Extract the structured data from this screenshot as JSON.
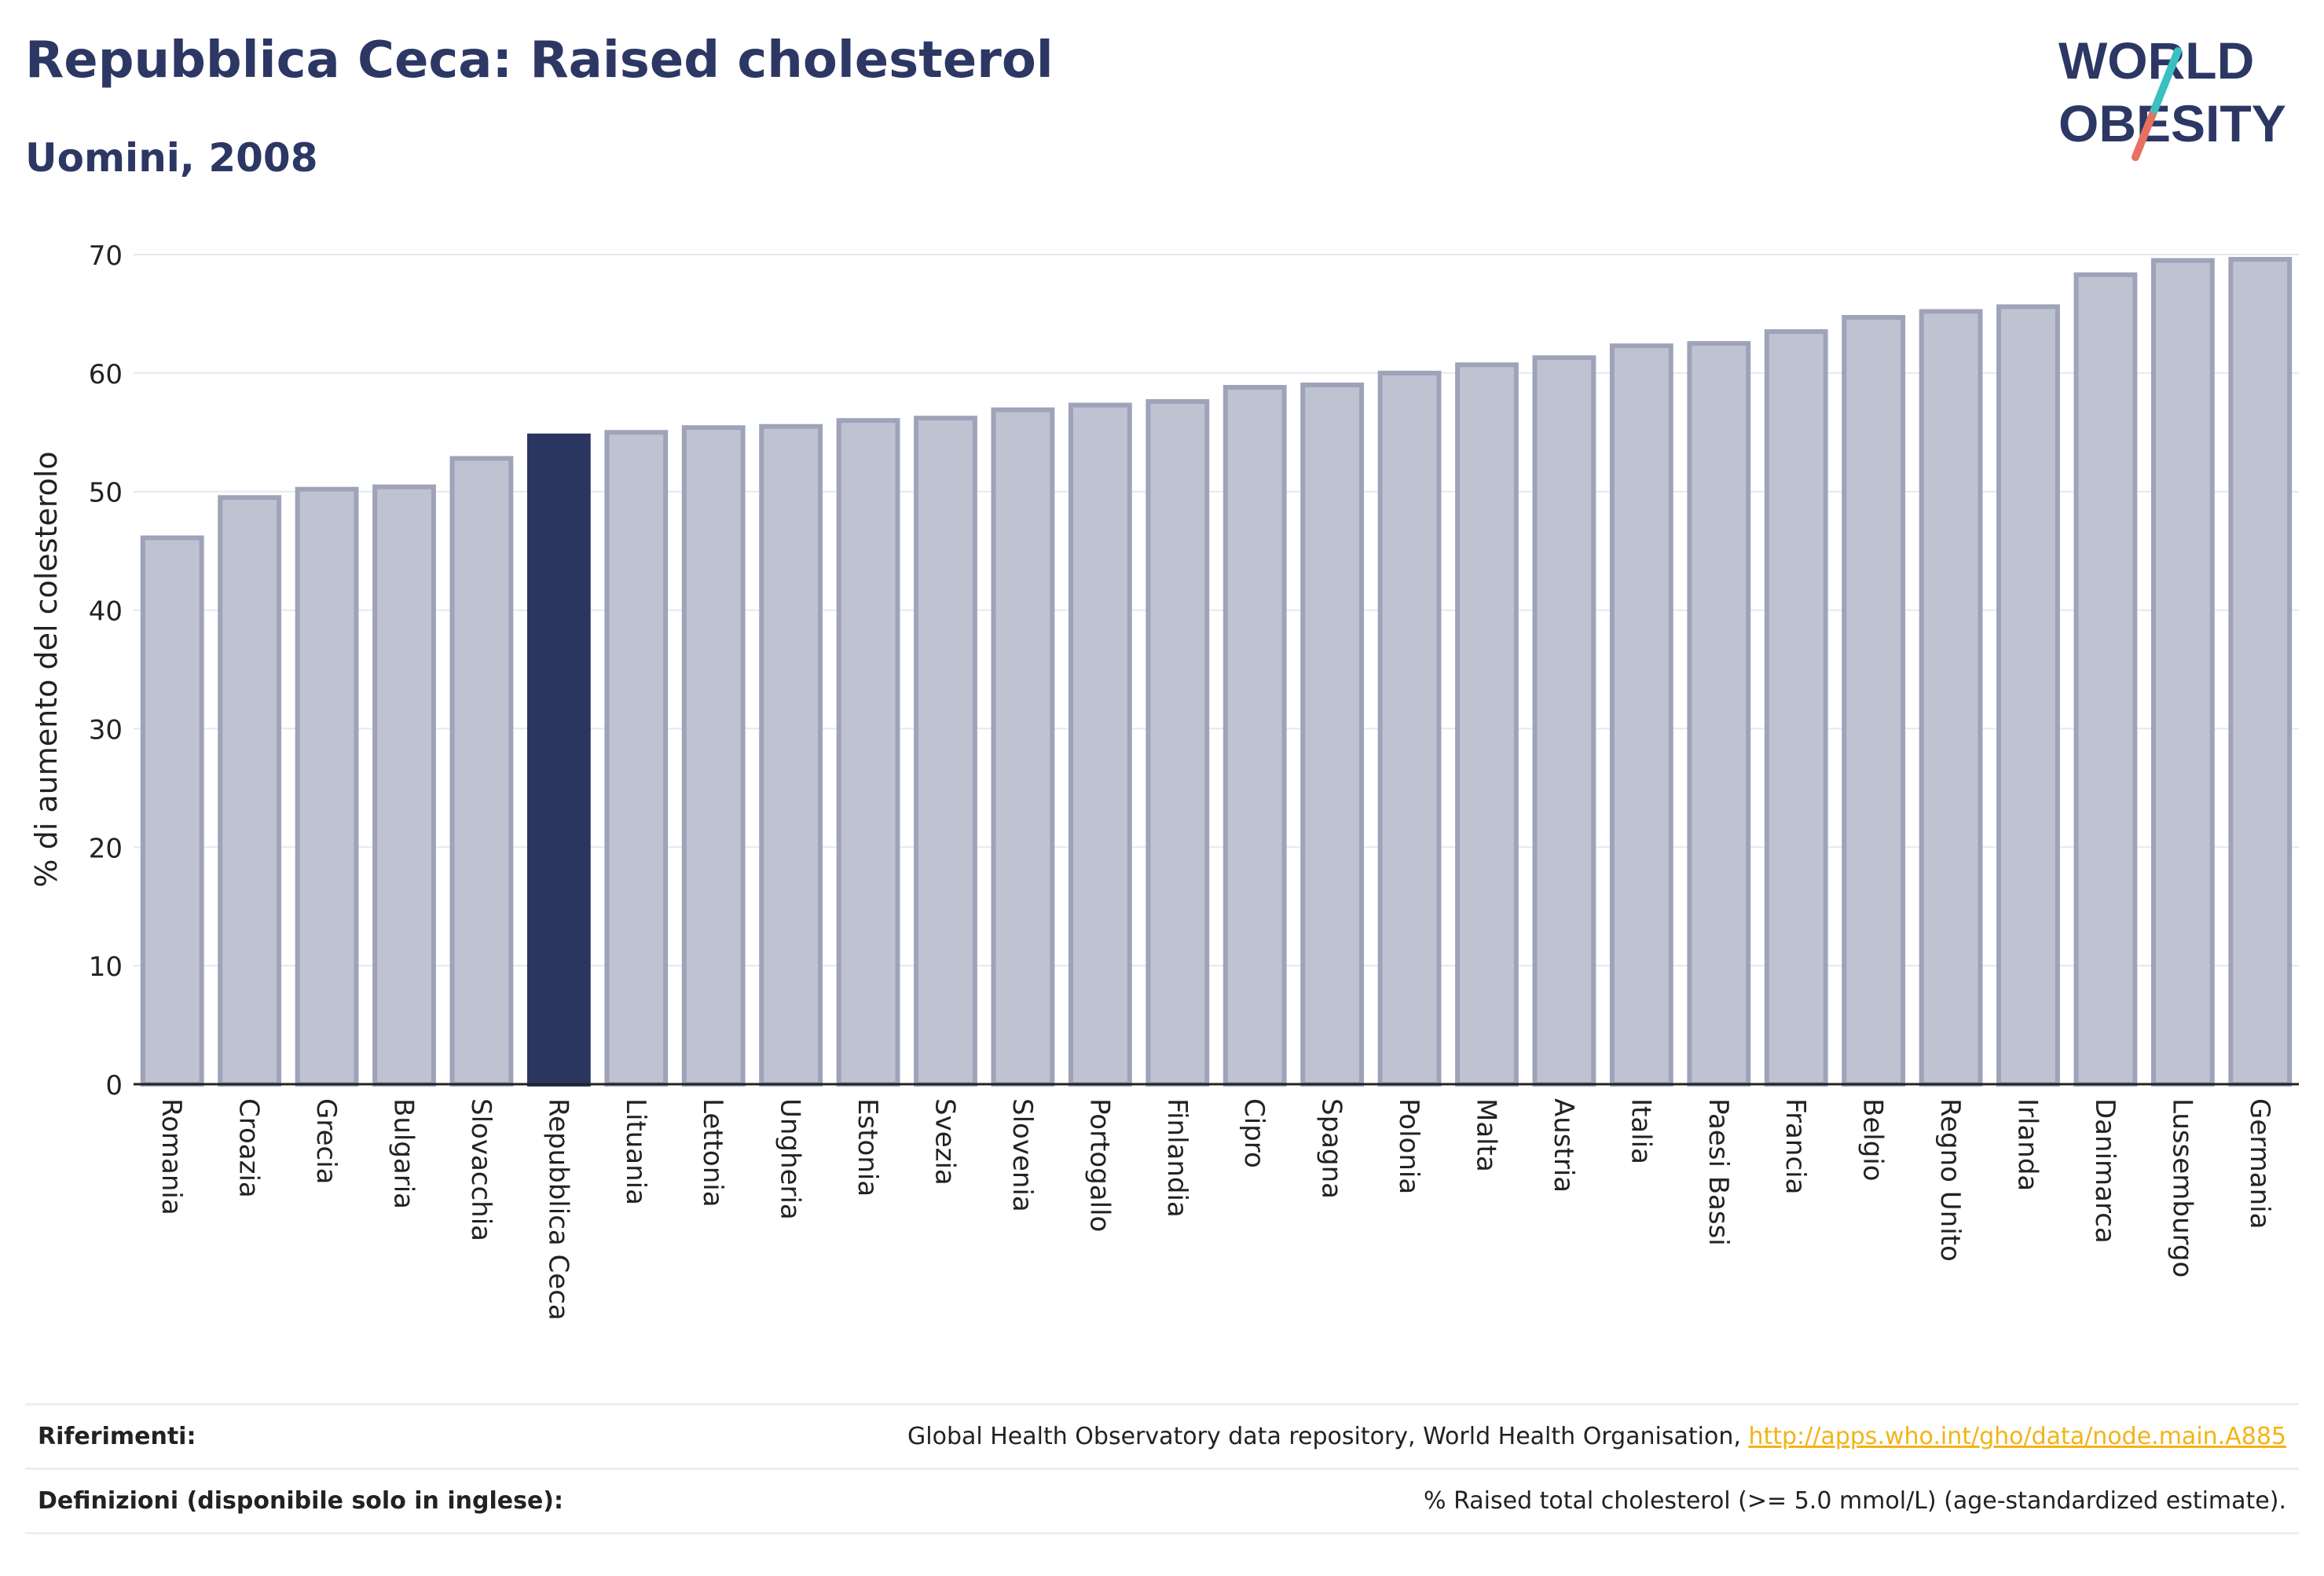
{
  "header": {
    "title": "Repubblica Ceca: Raised cholesterol",
    "subtitle": "Uomini, 2008"
  },
  "logo": {
    "line1": "WORLD",
    "line2": "OBESITY"
  },
  "colors": {
    "highlight": "#2b3660",
    "bar_fill": "#bfc3d1",
    "bar_stroke": "#9ea3ba",
    "title": "#2c3764",
    "link": "#f2b416",
    "logo_teal": "#3bbfc0",
    "logo_coral": "#e8705f"
  },
  "chart_data": {
    "type": "bar",
    "ylabel": "% di aumento del colesterolo",
    "ylim": [
      0,
      70
    ],
    "yticks": [
      0,
      10,
      20,
      30,
      40,
      50,
      60,
      70
    ],
    "grid": true,
    "highlight": "Repubblica Ceca",
    "categories": [
      "Romania",
      "Croazia",
      "Grecia",
      "Bulgaria",
      "Slovacchia",
      "Repubblica Ceca",
      "Lituania",
      "Lettonia",
      "Ungheria",
      "Estonia",
      "Svezia",
      "Slovenia",
      "Portogallo",
      "Finlandia",
      "Cipro",
      "Spagna",
      "Polonia",
      "Malta",
      "Austria",
      "Italia",
      "Paesi Bassi",
      "Francia",
      "Belgio",
      "Regno Unito",
      "Irlanda",
      "Danimarca",
      "Lussemburgo",
      "Germania"
    ],
    "values": [
      46.1,
      49.5,
      50.2,
      50.4,
      52.8,
      54.7,
      55.0,
      55.4,
      55.5,
      56.0,
      56.2,
      56.9,
      57.3,
      57.6,
      58.8,
      59.0,
      60.0,
      60.7,
      61.3,
      62.3,
      62.5,
      63.5,
      64.7,
      65.2,
      65.6,
      68.3,
      69.5,
      69.6
    ]
  },
  "footer": {
    "references_label": "Riferimenti:",
    "references_text": "Global Health Observatory data repository, World Health Organisation, ",
    "references_link": "http://apps.who.int/gho/data/node.main.A885",
    "definitions_label": "Definizioni (disponibile solo in inglese):",
    "definitions_text": "% Raised total cholesterol (>= 5.0 mmol/L) (age-standardized estimate)."
  }
}
